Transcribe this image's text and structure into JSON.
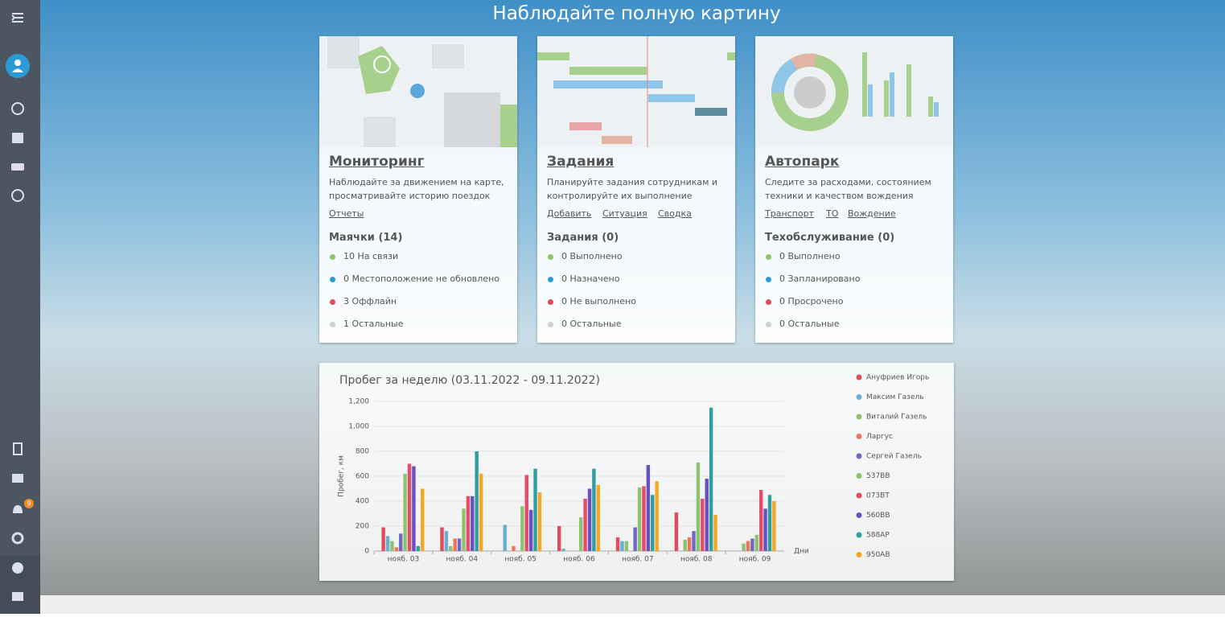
{
  "header": {
    "title": "Наблюдайте полную картину"
  },
  "sidebar": {
    "badge": "9"
  },
  "cards": [
    {
      "title": "Мониторинг",
      "description": [
        "Наблюдайте за движением на карте,",
        "просматривайте историю поездок"
      ],
      "links": [
        "Отчеты"
      ],
      "section_title": "Маячки (14)",
      "statuses": [
        "10 На связи",
        "0 Местоположение не обновлено",
        "3 Оффлайн",
        "1 Остальные"
      ]
    },
    {
      "title": "Задания",
      "description": [
        "Планируйте задания сотрудникам и",
        "контролируйте их выполнение"
      ],
      "links": [
        "Добавить",
        "Ситуация",
        "Сводка"
      ],
      "section_title": "Задания (0)",
      "statuses": [
        "0 Выполнено",
        "0 Назначено",
        "0 Не выполнено",
        "0 Остальные"
      ]
    },
    {
      "title": "Автопарк",
      "description": [
        "Следите за расходами, состоянием",
        "техники и качеством вождения"
      ],
      "links": [
        "Транспорт",
        "ТО",
        "Вождение"
      ],
      "section_title": "Техобслуживание (0)",
      "statuses": [
        "0 Выполнено",
        "0 Запланировано",
        "0 Просрочено",
        "0 Остальные"
      ]
    }
  ],
  "chart_data": {
    "type": "bar",
    "title": "Пробег за неделю (03.11.2022 - 09.11.2022)",
    "y_label": "Пробег, км",
    "x_label": "Дни",
    "categories": [
      "нояб. 03",
      "нояб. 04",
      "нояб. 05",
      "нояб. 06",
      "нояб. 07",
      "нояб. 08",
      "нояб. 09"
    ],
    "ylim": [
      0,
      1200
    ],
    "yticks": [
      0,
      200,
      400,
      600,
      800,
      {
        "value": 1000,
        "label": "1,000"
      },
      {
        "value": 1200,
        "label": "1,200"
      }
    ],
    "grid": true,
    "series": [
      {
        "name": "Ануфриев Игорь",
        "color": "#e04c5c",
        "values": [
          190,
          190,
          0,
          200,
          110,
          310,
          0
        ]
      },
      {
        "name": "Максим Газель",
        "color": "#6aaed6",
        "values": [
          120,
          160,
          210,
          20,
          80,
          0,
          0
        ]
      },
      {
        "name": "Виталий Газель",
        "color": "#8dc26f",
        "values": [
          80,
          40,
          0,
          0,
          80,
          90,
          60
        ]
      },
      {
        "name": "Ларгус",
        "color": "#f07360",
        "values": [
          30,
          100,
          40,
          0,
          0,
          110,
          80
        ]
      },
      {
        "name": "Сергей Газель",
        "color": "#7068c0",
        "values": [
          140,
          100,
          0,
          0,
          190,
          160,
          100
        ]
      },
      {
        "name": "537ВВ",
        "color": "#8dc26f",
        "values": [
          620,
          340,
          360,
          270,
          510,
          710,
          130
        ]
      },
      {
        "name": "073ВТ",
        "color": "#e44c6a",
        "values": [
          700,
          440,
          610,
          420,
          520,
          420,
          490
        ]
      },
      {
        "name": "560ВВ",
        "color": "#6a4fc0",
        "values": [
          680,
          440,
          330,
          500,
          690,
          580,
          340
        ]
      },
      {
        "name": "588АР",
        "color": "#2e9e9e",
        "values": [
          40,
          800,
          660,
          660,
          450,
          1150,
          450
        ]
      },
      {
        "name": "950АВ",
        "color": "#f5a623",
        "values": [
          500,
          620,
          470,
          530,
          560,
          290,
          400
        ]
      }
    ]
  }
}
